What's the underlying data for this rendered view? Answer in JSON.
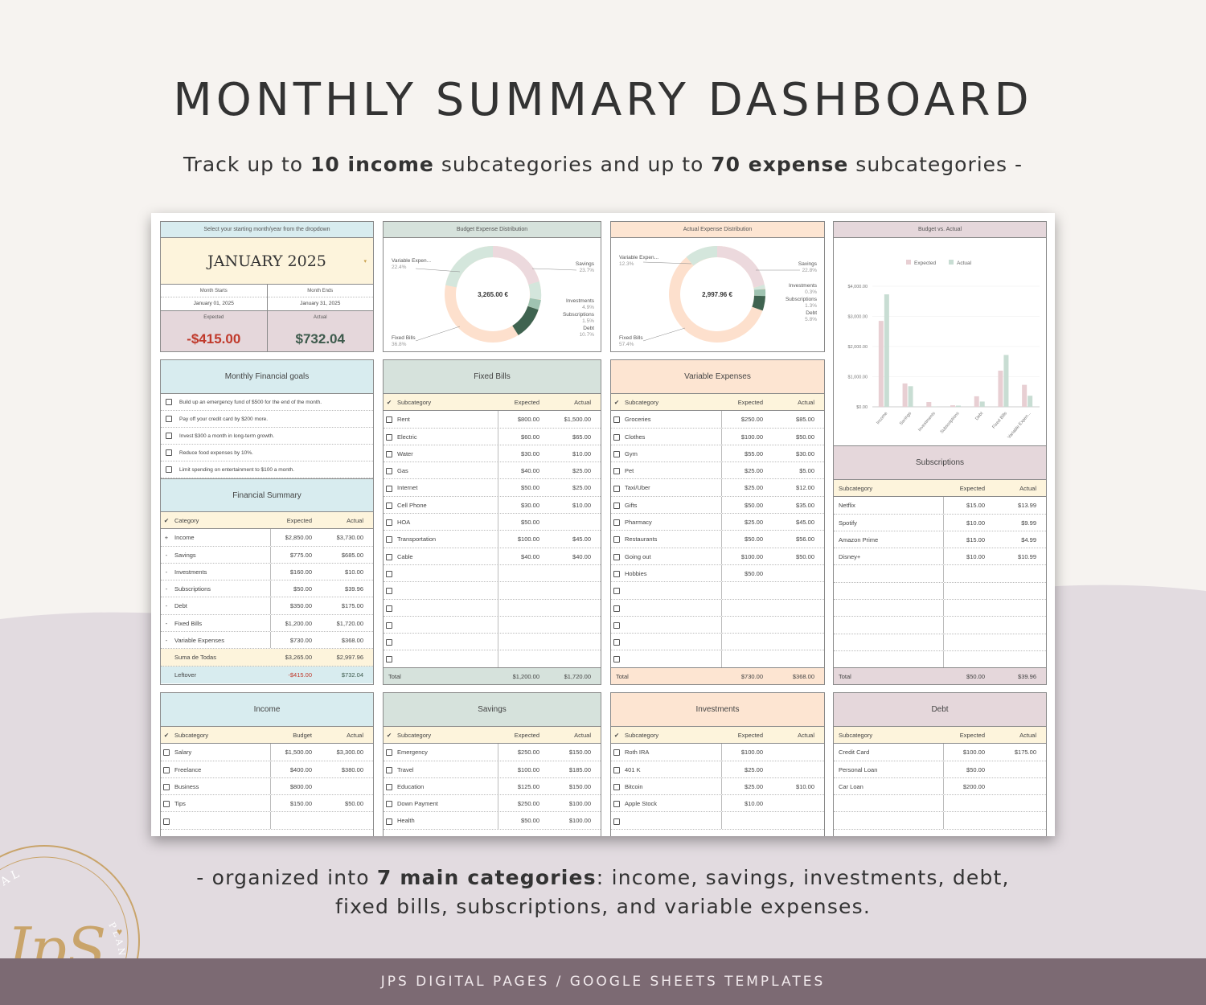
{
  "page": {
    "title": "MONTHLY SUMMARY DASHBOARD",
    "subtitle_pre": "Track up to ",
    "subtitle_b1": "10 income",
    "subtitle_mid": " subcategories and up to ",
    "subtitle_b2": "70 expense",
    "subtitle_post": " subcategories -",
    "bottom_pre": "- organized into ",
    "bottom_b": "7 main categories",
    "bottom_line1_post": ": income, savings, investments, debt,",
    "bottom_line2": "fixed bills, subscriptions, and variable expenses.",
    "footer": "JPS DIGITAL PAGES / GOOGLE SHEETS TEMPLATES",
    "logo_top": "DIGITAL",
    "logo_right": "PLANNERS",
    "logo_script": "JpS"
  },
  "month": {
    "header": "Select your starting month/year from the dropdown",
    "title": "JANUARY 2025",
    "starts_label": "Month Starts",
    "ends_label": "Month Ends",
    "starts": "January 01, 2025",
    "ends": "January 31, 2025",
    "expected_label": "Expected",
    "actual_label": "Actual",
    "expected": "-$415.00",
    "actual": "$732.04"
  },
  "budget_dist": {
    "header": "Budget Expense Distribution",
    "center": "3,265.00 €",
    "labels": {
      "variable": "Variable Expen...",
      "variable_pct": "22.4%",
      "savings": "Savings",
      "savings_pct": "23.7%",
      "investments": "Investments",
      "investments_pct": "4.9%",
      "subscriptions": "Subscriptions",
      "subscriptions_pct": "1.5%",
      "debt": "Debt",
      "debt_pct": "10.7%",
      "fixed": "Fixed Bills",
      "fixed_pct": "36.8%"
    }
  },
  "actual_dist": {
    "header": "Actual Expense Distribution",
    "center": "2,997.96 €",
    "labels": {
      "variable": "Variable Expen...",
      "variable_pct": "12.3%",
      "savings": "Savings",
      "savings_pct": "22.8%",
      "investments": "Investments",
      "investments_pct": "0.3%",
      "subscriptions": "Subscriptions",
      "subscriptions_pct": "1.3%",
      "debt": "Debt",
      "debt_pct": "5.8%",
      "fixed": "Fixed Bills",
      "fixed_pct": "57.4%"
    }
  },
  "bar_chart": {
    "header": "Budget vs. Actual",
    "legend_expected": "Expected",
    "legend_actual": "Actual",
    "ticks": [
      "$0.00",
      "$1,000.00",
      "$2,000.00",
      "$3,000.00",
      "$4,000.00"
    ],
    "colors": {
      "expected": "#e8cfd3",
      "actual": "#c8ddd3"
    }
  },
  "chart_data": {
    "type": "bar",
    "title": "Budget vs. Actual",
    "categories": [
      "Income",
      "Savings",
      "Investments",
      "Subscriptions",
      "Debt",
      "Fixed Bills",
      "Variable Expen..."
    ],
    "series": [
      {
        "name": "Expected",
        "values": [
          2850,
          775,
          160,
          50,
          350,
          1200,
          730
        ]
      },
      {
        "name": "Actual",
        "values": [
          3730,
          685,
          10,
          39.96,
          175,
          1720,
          368
        ]
      }
    ],
    "ylim": [
      0,
      4000
    ]
  },
  "goals": {
    "header": "Monthly Financial goals",
    "items": [
      "Build up an emergency fund of $500 for the end of the month.",
      "Pay off your credit card by $200 more.",
      "Invest $300 a month in long-term growth.",
      "Reduce food expenses by 10%.",
      "Limit spending on entertainment to $100 a month."
    ]
  },
  "summary": {
    "header": "Financial Summary",
    "cols": [
      "✔",
      "Category",
      "Expected",
      "Actual"
    ],
    "rows": [
      [
        "+",
        "Income",
        "$2,850.00",
        "$3,730.00"
      ],
      [
        "-",
        "Savings",
        "$775.00",
        "$685.00"
      ],
      [
        "-",
        "Investments",
        "$160.00",
        "$10.00"
      ],
      [
        "-",
        "Subscriptions",
        "$50.00",
        "$39.96"
      ],
      [
        "-",
        "Debt",
        "$350.00",
        "$175.00"
      ],
      [
        "-",
        "Fixed Bills",
        "$1,200.00",
        "$1,720.00"
      ],
      [
        "-",
        "Variable Expenses",
        "$730.00",
        "$368.00"
      ]
    ],
    "sum_label": "Suma de Todas",
    "sum_expected": "$3,265.00",
    "sum_actual": "$2,997.96",
    "left_label": "Leftover",
    "left_expected": "-$415.00",
    "left_actual": "$732.04"
  },
  "fixed": {
    "header": "Fixed Bills",
    "cols": [
      "✔",
      "Subcategory",
      "Expected",
      "Actual"
    ],
    "rows": [
      [
        "Rent",
        "$800.00",
        "$1,500.00"
      ],
      [
        "Electric",
        "$60.00",
        "$65.00"
      ],
      [
        "Water",
        "$30.00",
        "$10.00"
      ],
      [
        "Gas",
        "$40.00",
        "$25.00"
      ],
      [
        "Internet",
        "$50.00",
        "$25.00"
      ],
      [
        "Cell Phone",
        "$30.00",
        "$10.00"
      ],
      [
        "HOA",
        "$50.00",
        ""
      ],
      [
        "Transportation",
        "$100.00",
        "$45.00"
      ],
      [
        "Cable",
        "$40.00",
        "$40.00"
      ],
      [
        "",
        "",
        ""
      ],
      [
        "",
        "",
        ""
      ],
      [
        "",
        "",
        ""
      ],
      [
        "",
        "",
        ""
      ],
      [
        "",
        "",
        ""
      ],
      [
        "",
        "",
        ""
      ]
    ],
    "total_label": "Total",
    "total_expected": "$1,200.00",
    "total_actual": "$1,720.00"
  },
  "variable": {
    "header": "Variable Expenses",
    "cols": [
      "✔",
      "Subcategory",
      "Expected",
      "Actual"
    ],
    "rows": [
      [
        "Groceries",
        "$250.00",
        "$85.00"
      ],
      [
        "Clothes",
        "$100.00",
        "$50.00"
      ],
      [
        "Gym",
        "$55.00",
        "$30.00"
      ],
      [
        "Pet",
        "$25.00",
        "$5.00"
      ],
      [
        "Taxi/Uber",
        "$25.00",
        "$12.00"
      ],
      [
        "Gifts",
        "$50.00",
        "$35.00"
      ],
      [
        "Pharmacy",
        "$25.00",
        "$45.00"
      ],
      [
        "Restaurants",
        "$50.00",
        "$56.00"
      ],
      [
        "Going out",
        "$100.00",
        "$50.00"
      ],
      [
        "Hobbies",
        "$50.00",
        ""
      ],
      [
        "",
        "",
        ""
      ],
      [
        "",
        "",
        ""
      ],
      [
        "",
        "",
        ""
      ],
      [
        "",
        "",
        ""
      ],
      [
        "",
        "",
        ""
      ]
    ],
    "total_label": "Total",
    "total_expected": "$730.00",
    "total_actual": "$368.00"
  },
  "subs": {
    "header": "Subscriptions",
    "cols": [
      "Subcategory",
      "Expected",
      "Actual"
    ],
    "rows": [
      [
        "Netflix",
        "$15.00",
        "$13.99"
      ],
      [
        "Spotify",
        "$10.00",
        "$9.99"
      ],
      [
        "Amazon Prime",
        "$15.00",
        "$4.99"
      ],
      [
        "Disney+",
        "$10.00",
        "$10.99"
      ],
      [
        "",
        "",
        ""
      ],
      [
        "",
        "",
        ""
      ],
      [
        "",
        "",
        ""
      ],
      [
        "",
        "",
        ""
      ],
      [
        "",
        "",
        ""
      ],
      [
        "",
        "",
        ""
      ]
    ],
    "total_label": "Total",
    "total_expected": "$50.00",
    "total_actual": "$39.96"
  },
  "income": {
    "header": "Income",
    "cols": [
      "✔",
      "Subcategory",
      "Budget",
      "Actual"
    ],
    "rows": [
      [
        "Salary",
        "$1,500.00",
        "$3,300.00"
      ],
      [
        "Freelance",
        "$400.00",
        "$380.00"
      ],
      [
        "Business",
        "$800.00",
        ""
      ],
      [
        "Tips",
        "$150.00",
        "$50.00"
      ],
      [
        "",
        "",
        ""
      ]
    ]
  },
  "savings": {
    "header": "Savings",
    "cols": [
      "✔",
      "Subcategory",
      "Expected",
      "Actual"
    ],
    "rows": [
      [
        "Emergency",
        "$250.00",
        "$150.00"
      ],
      [
        "Travel",
        "$100.00",
        "$185.00"
      ],
      [
        "Education",
        "$125.00",
        "$150.00"
      ],
      [
        "Down Payment",
        "$250.00",
        "$100.00"
      ],
      [
        "Health",
        "$50.00",
        "$100.00"
      ]
    ]
  },
  "investments": {
    "header": "Investments",
    "cols": [
      "✔",
      "Subcategory",
      "Expected",
      "Actual"
    ],
    "rows": [
      [
        "Roth IRA",
        "$100.00",
        ""
      ],
      [
        "401 K",
        "$25.00",
        ""
      ],
      [
        "Bitcoin",
        "$25.00",
        "$10.00"
      ],
      [
        "Apple Stock",
        "$10.00",
        ""
      ],
      [
        "",
        "",
        ""
      ]
    ]
  },
  "debt": {
    "header": "Debt",
    "cols": [
      "Subcategory",
      "Expected",
      "Actual"
    ],
    "rows": [
      [
        "Credit Card",
        "$100.00",
        "$175.00"
      ],
      [
        "Personal Loan",
        "$50.00",
        ""
      ],
      [
        "Car Loan",
        "$200.00",
        ""
      ],
      [
        "",
        "",
        ""
      ],
      [
        "",
        "",
        ""
      ]
    ]
  }
}
